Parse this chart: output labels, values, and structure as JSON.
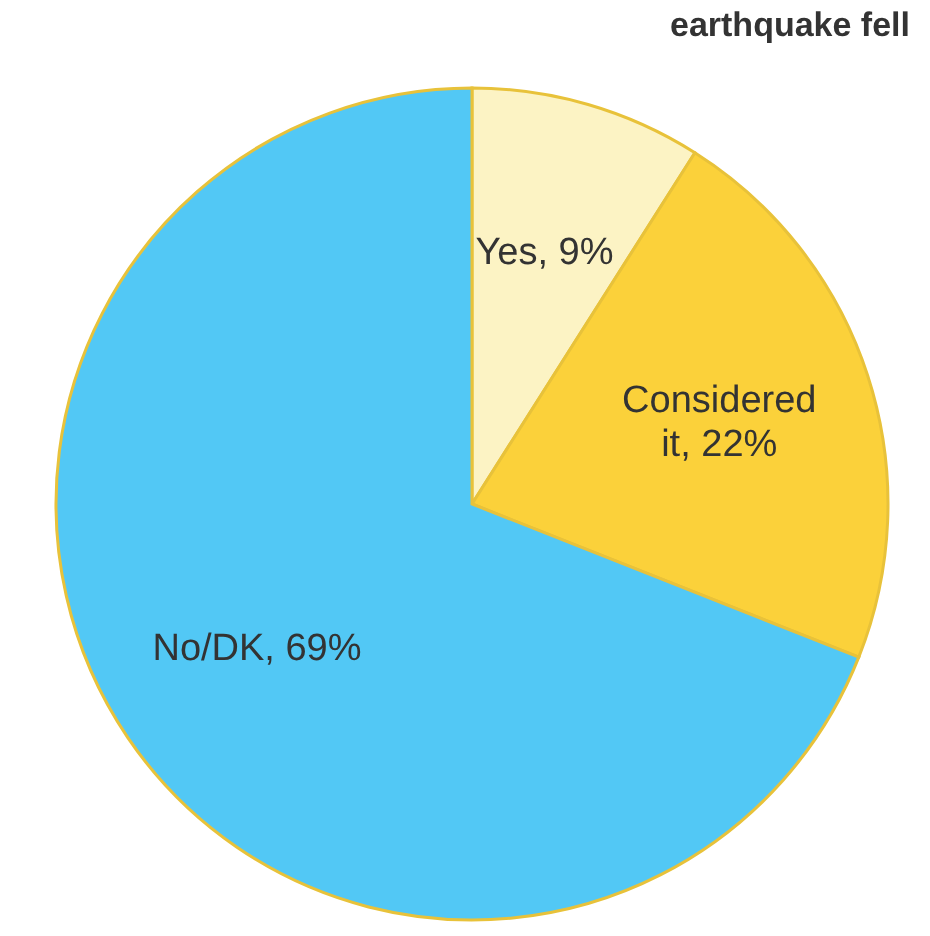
{
  "chart_data": {
    "type": "pie",
    "title": "earthquake fell",
    "categories": [
      "Yes",
      "Considered it",
      "No/DK"
    ],
    "values": [
      9,
      22,
      69
    ],
    "value_labels": [
      "9%",
      "22%",
      "69%"
    ],
    "colors": [
      "#fcf3c4",
      "#fbd13a",
      "#52c8f5"
    ]
  }
}
